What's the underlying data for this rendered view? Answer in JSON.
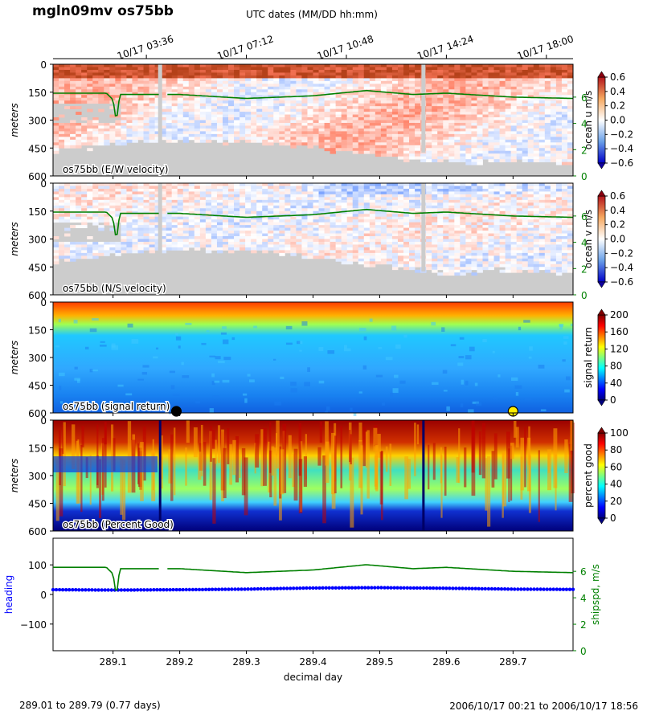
{
  "title": "mgln09mv os75bb",
  "utc_axis_label": "UTC dates (MM/DD hh:mm)",
  "utc_ticks": [
    {
      "x": 289.15,
      "label": "10/17 03:36"
    },
    {
      "x": 289.3,
      "label": "10/17 07:12"
    },
    {
      "x": 289.45,
      "label": "10/17 10:48"
    },
    {
      "x": 289.6,
      "label": "10/17 14:24"
    },
    {
      "x": 289.75,
      "label": "10/17 18:00"
    }
  ],
  "footer_left": "289.01 to 289.79 (0.77 days)",
  "footer_right": "2006/10/17 00:21 to 2006/10/17 18:56",
  "chart_data": [
    {
      "type": "heatmap",
      "name": "os75bb (E/W velocity)",
      "ylabel": "meters",
      "yticks": [
        0,
        150,
        300,
        450,
        600
      ],
      "ylim": [
        600,
        0
      ],
      "colorbar": {
        "label": "ocean u m/s",
        "ticks": [
          "0.6",
          "0.4",
          "0.2",
          "0.0",
          "−0.2",
          "−0.4",
          "−0.6"
        ],
        "range": [
          -0.6,
          0.6
        ],
        "colormap": "RdBu_r"
      },
      "right_axis": {
        "ticks": [
          "6",
          "4",
          "2",
          "0"
        ],
        "color": "#008000"
      },
      "overlay": "ship speed"
    },
    {
      "type": "heatmap",
      "name": "os75bb (N/S velocity)",
      "ylabel": "meters",
      "yticks": [
        0,
        150,
        300,
        450,
        600
      ],
      "ylim": [
        600,
        0
      ],
      "colorbar": {
        "label": "ocean v m/s",
        "ticks": [
          "0.6",
          "0.4",
          "0.2",
          "0.0",
          "−0.2",
          "−0.4",
          "−0.6"
        ],
        "range": [
          -0.6,
          0.6
        ],
        "colormap": "RdBu_r"
      },
      "right_axis": {
        "ticks": [
          "6",
          "4",
          "2",
          "0"
        ],
        "color": "#008000"
      },
      "overlay": "ship speed"
    },
    {
      "type": "heatmap",
      "name": "os75bb (signal return)",
      "ylabel": "meters",
      "yticks": [
        0,
        150,
        300,
        450,
        600
      ],
      "ylim": [
        600,
        0
      ],
      "colorbar": {
        "label": "signal return",
        "ticks": [
          "200",
          "160",
          "120",
          "80",
          "40",
          "0"
        ],
        "range": [
          0,
          200
        ],
        "colormap": "jet"
      },
      "markers": [
        {
          "x": 289.195,
          "color": "#000000"
        },
        {
          "x": 289.7,
          "color": "#ffee00"
        }
      ]
    },
    {
      "type": "heatmap",
      "name": "os75bb (Percent Good)",
      "ylabel": "meters",
      "yticks": [
        0,
        150,
        300,
        450,
        600
      ],
      "ylim": [
        600,
        0
      ],
      "colorbar": {
        "label": "percent good",
        "ticks": [
          "100",
          "80",
          "60",
          "40",
          "20",
          "0"
        ],
        "range": [
          0,
          100
        ],
        "colormap": "jet"
      }
    },
    {
      "type": "line",
      "xlabel": "decimal day",
      "xticks": [
        "289.1",
        "289.2",
        "289.3",
        "289.4",
        "289.5",
        "289.6",
        "289.7"
      ],
      "xlim": [
        289.01,
        289.79
      ],
      "ylabel": "heading",
      "ylabel_color": "#0000ff",
      "yticks": [
        "100",
        "0",
        "−100"
      ],
      "ylim": [
        -190,
        190
      ],
      "right_ylabel": "shipspd, m/s",
      "right_ylabel_color": "#008000",
      "right_yticks": [
        "6",
        "4",
        "2",
        "0"
      ],
      "right_ylim": [
        0,
        8.5
      ],
      "series": [
        {
          "role": "heading",
          "color": "#0000ff",
          "x": [
            289.01,
            289.1,
            289.2,
            289.3,
            289.4,
            289.5,
            289.6,
            289.7,
            289.79
          ],
          "y": [
            16,
            15,
            16,
            18,
            22,
            23,
            21,
            18,
            17
          ]
        },
        {
          "role": "ship speed",
          "color": "#008000",
          "x": [
            289.01,
            289.09,
            289.1,
            289.105,
            289.11,
            289.2,
            289.3,
            289.4,
            289.48,
            289.55,
            289.6,
            289.7,
            289.79
          ],
          "y": [
            6.3,
            6.3,
            5.8,
            4.1,
            6.2,
            6.2,
            5.9,
            6.1,
            6.5,
            6.2,
            6.3,
            6.0,
            5.9
          ]
        }
      ]
    }
  ]
}
